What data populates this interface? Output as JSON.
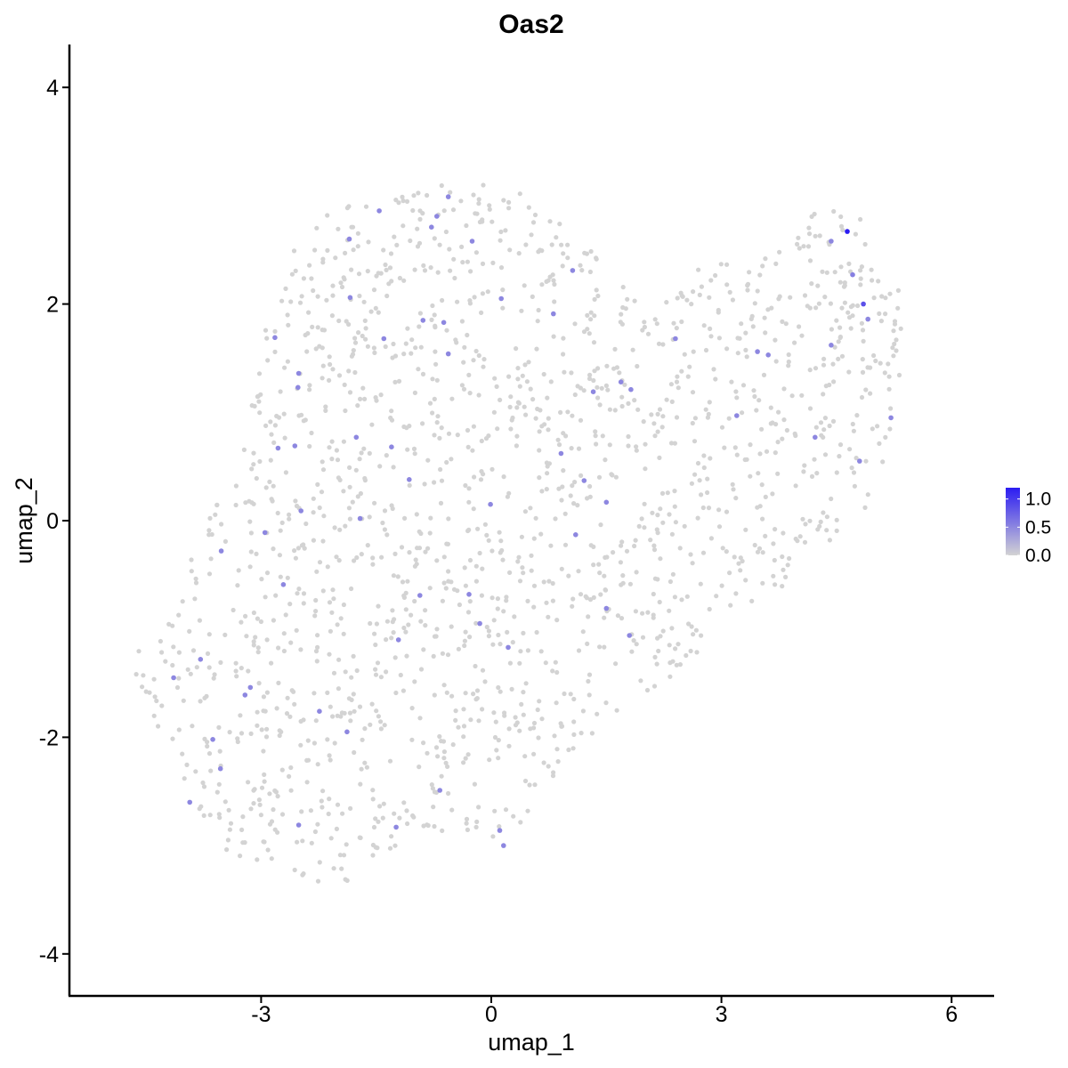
{
  "chart_data": {
    "type": "scatter",
    "title": "Oas2",
    "xlabel": "umap_1",
    "ylabel": "umap_2",
    "xlim": [
      -5.4,
      6.6
    ],
    "ylim": [
      -4.35,
      4.4
    ],
    "x_ticks": [
      -3,
      0,
      3,
      6
    ],
    "y_ticks": [
      -4,
      -2,
      0,
      2,
      4
    ],
    "x_tick_labels": [
      "-3",
      "0",
      "3",
      "6"
    ],
    "y_tick_labels": [
      "-4",
      "-2",
      "0",
      "2",
      "4"
    ],
    "grid": false,
    "colors": {
      "low": "#d3d3d3",
      "high": "#2b1cf2",
      "axis": "#000000"
    },
    "legend": {
      "position": "right",
      "type": "colorbar",
      "range": [
        0,
        1.2
      ],
      "ticks": [
        0,
        0.5,
        1
      ],
      "tick_labels": [
        "0.0",
        "0.5",
        "1.0"
      ]
    },
    "expressing_points": [
      {
        "x": 4.64,
        "y": 2.67,
        "value": 1.2
      },
      {
        "x": 4.85,
        "y": 2.0,
        "value": 0.85
      },
      {
        "x": 4.71,
        "y": 2.27,
        "value": 0.55
      },
      {
        "x": 4.43,
        "y": 2.58,
        "value": 0.5
      },
      {
        "x": 4.91,
        "y": 1.86,
        "value": 0.5
      },
      {
        "x": 4.43,
        "y": 1.62,
        "value": 0.5
      },
      {
        "x": 5.21,
        "y": 0.95,
        "value": 0.5
      },
      {
        "x": 4.8,
        "y": 0.55,
        "value": 0.5
      },
      {
        "x": 4.22,
        "y": 0.77,
        "value": 0.5
      },
      {
        "x": 3.47,
        "y": 1.56,
        "value": 0.5
      },
      {
        "x": 3.61,
        "y": 1.53,
        "value": 0.5
      },
      {
        "x": 3.2,
        "y": 0.97,
        "value": 0.5
      },
      {
        "x": 2.4,
        "y": 1.68,
        "value": 0.5
      },
      {
        "x": 1.69,
        "y": 1.28,
        "value": 0.5
      },
      {
        "x": 1.82,
        "y": 1.21,
        "value": 0.5
      },
      {
        "x": 1.33,
        "y": 1.19,
        "value": 0.5
      },
      {
        "x": 0.81,
        "y": 1.91,
        "value": 0.5
      },
      {
        "x": 0.91,
        "y": 0.62,
        "value": 0.5
      },
      {
        "x": 1.06,
        "y": 2.31,
        "value": 0.5
      },
      {
        "x": 1.21,
        "y": 0.37,
        "value": 0.5
      },
      {
        "x": 1.5,
        "y": 0.17,
        "value": 0.5
      },
      {
        "x": 1.1,
        "y": -0.13,
        "value": 0.5
      },
      {
        "x": 0.13,
        "y": 2.05,
        "value": 0.5
      },
      {
        "x": -0.25,
        "y": 2.58,
        "value": 0.5
      },
      {
        "x": -0.56,
        "y": 2.99,
        "value": 0.5
      },
      {
        "x": -0.71,
        "y": 2.81,
        "value": 0.5
      },
      {
        "x": -0.78,
        "y": 2.71,
        "value": 0.5
      },
      {
        "x": -0.62,
        "y": 1.83,
        "value": 0.5
      },
      {
        "x": -0.89,
        "y": 1.85,
        "value": 0.5
      },
      {
        "x": -0.56,
        "y": 1.54,
        "value": 0.5
      },
      {
        "x": -1.46,
        "y": 2.86,
        "value": 0.5
      },
      {
        "x": -1.85,
        "y": 2.6,
        "value": 0.5
      },
      {
        "x": -1.84,
        "y": 2.06,
        "value": 0.5
      },
      {
        "x": -1.4,
        "y": 1.68,
        "value": 0.5
      },
      {
        "x": -2.82,
        "y": 1.69,
        "value": 0.5
      },
      {
        "x": -2.51,
        "y": 1.36,
        "value": 0.5
      },
      {
        "x": -2.52,
        "y": 1.23,
        "value": 0.5
      },
      {
        "x": -1.76,
        "y": 0.77,
        "value": 0.5
      },
      {
        "x": -1.3,
        "y": 0.68,
        "value": 0.5
      },
      {
        "x": -1.07,
        "y": 0.38,
        "value": 0.5
      },
      {
        "x": -2.78,
        "y": 0.67,
        "value": 0.5
      },
      {
        "x": -2.56,
        "y": 0.69,
        "value": 0.5
      },
      {
        "x": -2.48,
        "y": 0.09,
        "value": 0.5
      },
      {
        "x": -1.71,
        "y": 0.02,
        "value": 0.5
      },
      {
        "x": -0.01,
        "y": 0.15,
        "value": 0.5
      },
      {
        "x": -2.95,
        "y": -0.11,
        "value": 0.5
      },
      {
        "x": -3.52,
        "y": -0.28,
        "value": 0.5
      },
      {
        "x": -2.71,
        "y": -0.59,
        "value": 0.5
      },
      {
        "x": -0.93,
        "y": -0.69,
        "value": 0.5
      },
      {
        "x": -0.29,
        "y": -0.68,
        "value": 0.5
      },
      {
        "x": -0.15,
        "y": -0.95,
        "value": 0.5
      },
      {
        "x": 0.22,
        "y": -1.17,
        "value": 0.5
      },
      {
        "x": 1.5,
        "y": -0.81,
        "value": 0.5
      },
      {
        "x": 1.8,
        "y": -1.06,
        "value": 0.5
      },
      {
        "x": -1.21,
        "y": -1.1,
        "value": 0.5
      },
      {
        "x": -3.79,
        "y": -1.28,
        "value": 0.5
      },
      {
        "x": -4.14,
        "y": -1.45,
        "value": 0.5
      },
      {
        "x": -3.14,
        "y": -1.54,
        "value": 0.5
      },
      {
        "x": -3.21,
        "y": -1.61,
        "value": 0.5
      },
      {
        "x": -2.24,
        "y": -1.76,
        "value": 0.5
      },
      {
        "x": -1.88,
        "y": -1.95,
        "value": 0.5
      },
      {
        "x": -3.63,
        "y": -2.02,
        "value": 0.5
      },
      {
        "x": -3.53,
        "y": -2.29,
        "value": 0.5
      },
      {
        "x": -3.93,
        "y": -2.6,
        "value": 0.5
      },
      {
        "x": -2.51,
        "y": -2.81,
        "value": 0.5
      },
      {
        "x": -1.24,
        "y": -2.83,
        "value": 0.5
      },
      {
        "x": -0.67,
        "y": -2.49,
        "value": 0.5
      },
      {
        "x": 0.11,
        "y": -2.86,
        "value": 0.5
      },
      {
        "x": 0.16,
        "y": -3.0,
        "value": 0.5
      }
    ],
    "background_cloud": {
      "value": 0.0,
      "approx_count": 1700,
      "outline": [
        [
          -4.7,
          -1.3
        ],
        [
          -4.45,
          -1.75
        ],
        [
          -4.1,
          -2.35
        ],
        [
          -3.45,
          -3.05
        ],
        [
          -2.5,
          -3.35
        ],
        [
          -1.95,
          -3.5
        ],
        [
          -1.45,
          -3.1
        ],
        [
          -0.5,
          -2.85
        ],
        [
          0.1,
          -3.0
        ],
        [
          0.7,
          -2.55
        ],
        [
          1.2,
          -2.05
        ],
        [
          2.0,
          -1.6
        ],
        [
          2.7,
          -1.3
        ],
        [
          3.4,
          -0.9
        ],
        [
          4.1,
          -0.5
        ],
        [
          4.8,
          -0.05
        ],
        [
          5.2,
          0.7
        ],
        [
          5.4,
          1.6
        ],
        [
          5.3,
          2.35
        ],
        [
          4.8,
          2.85
        ],
        [
          4.3,
          2.9
        ],
        [
          3.8,
          2.55
        ],
        [
          3.1,
          2.4
        ],
        [
          2.55,
          2.3
        ],
        [
          1.95,
          1.95
        ],
        [
          1.4,
          2.55
        ],
        [
          0.65,
          2.9
        ],
        [
          0.15,
          3.15
        ],
        [
          -0.6,
          3.1
        ],
        [
          -1.35,
          3.0
        ],
        [
          -2.2,
          2.85
        ],
        [
          -2.7,
          2.4
        ],
        [
          -3.05,
          1.55
        ],
        [
          -3.2,
          0.8
        ],
        [
          -3.55,
          0.25
        ],
        [
          -4.0,
          -0.5
        ],
        [
          -4.35,
          -0.95
        ]
      ]
    }
  }
}
